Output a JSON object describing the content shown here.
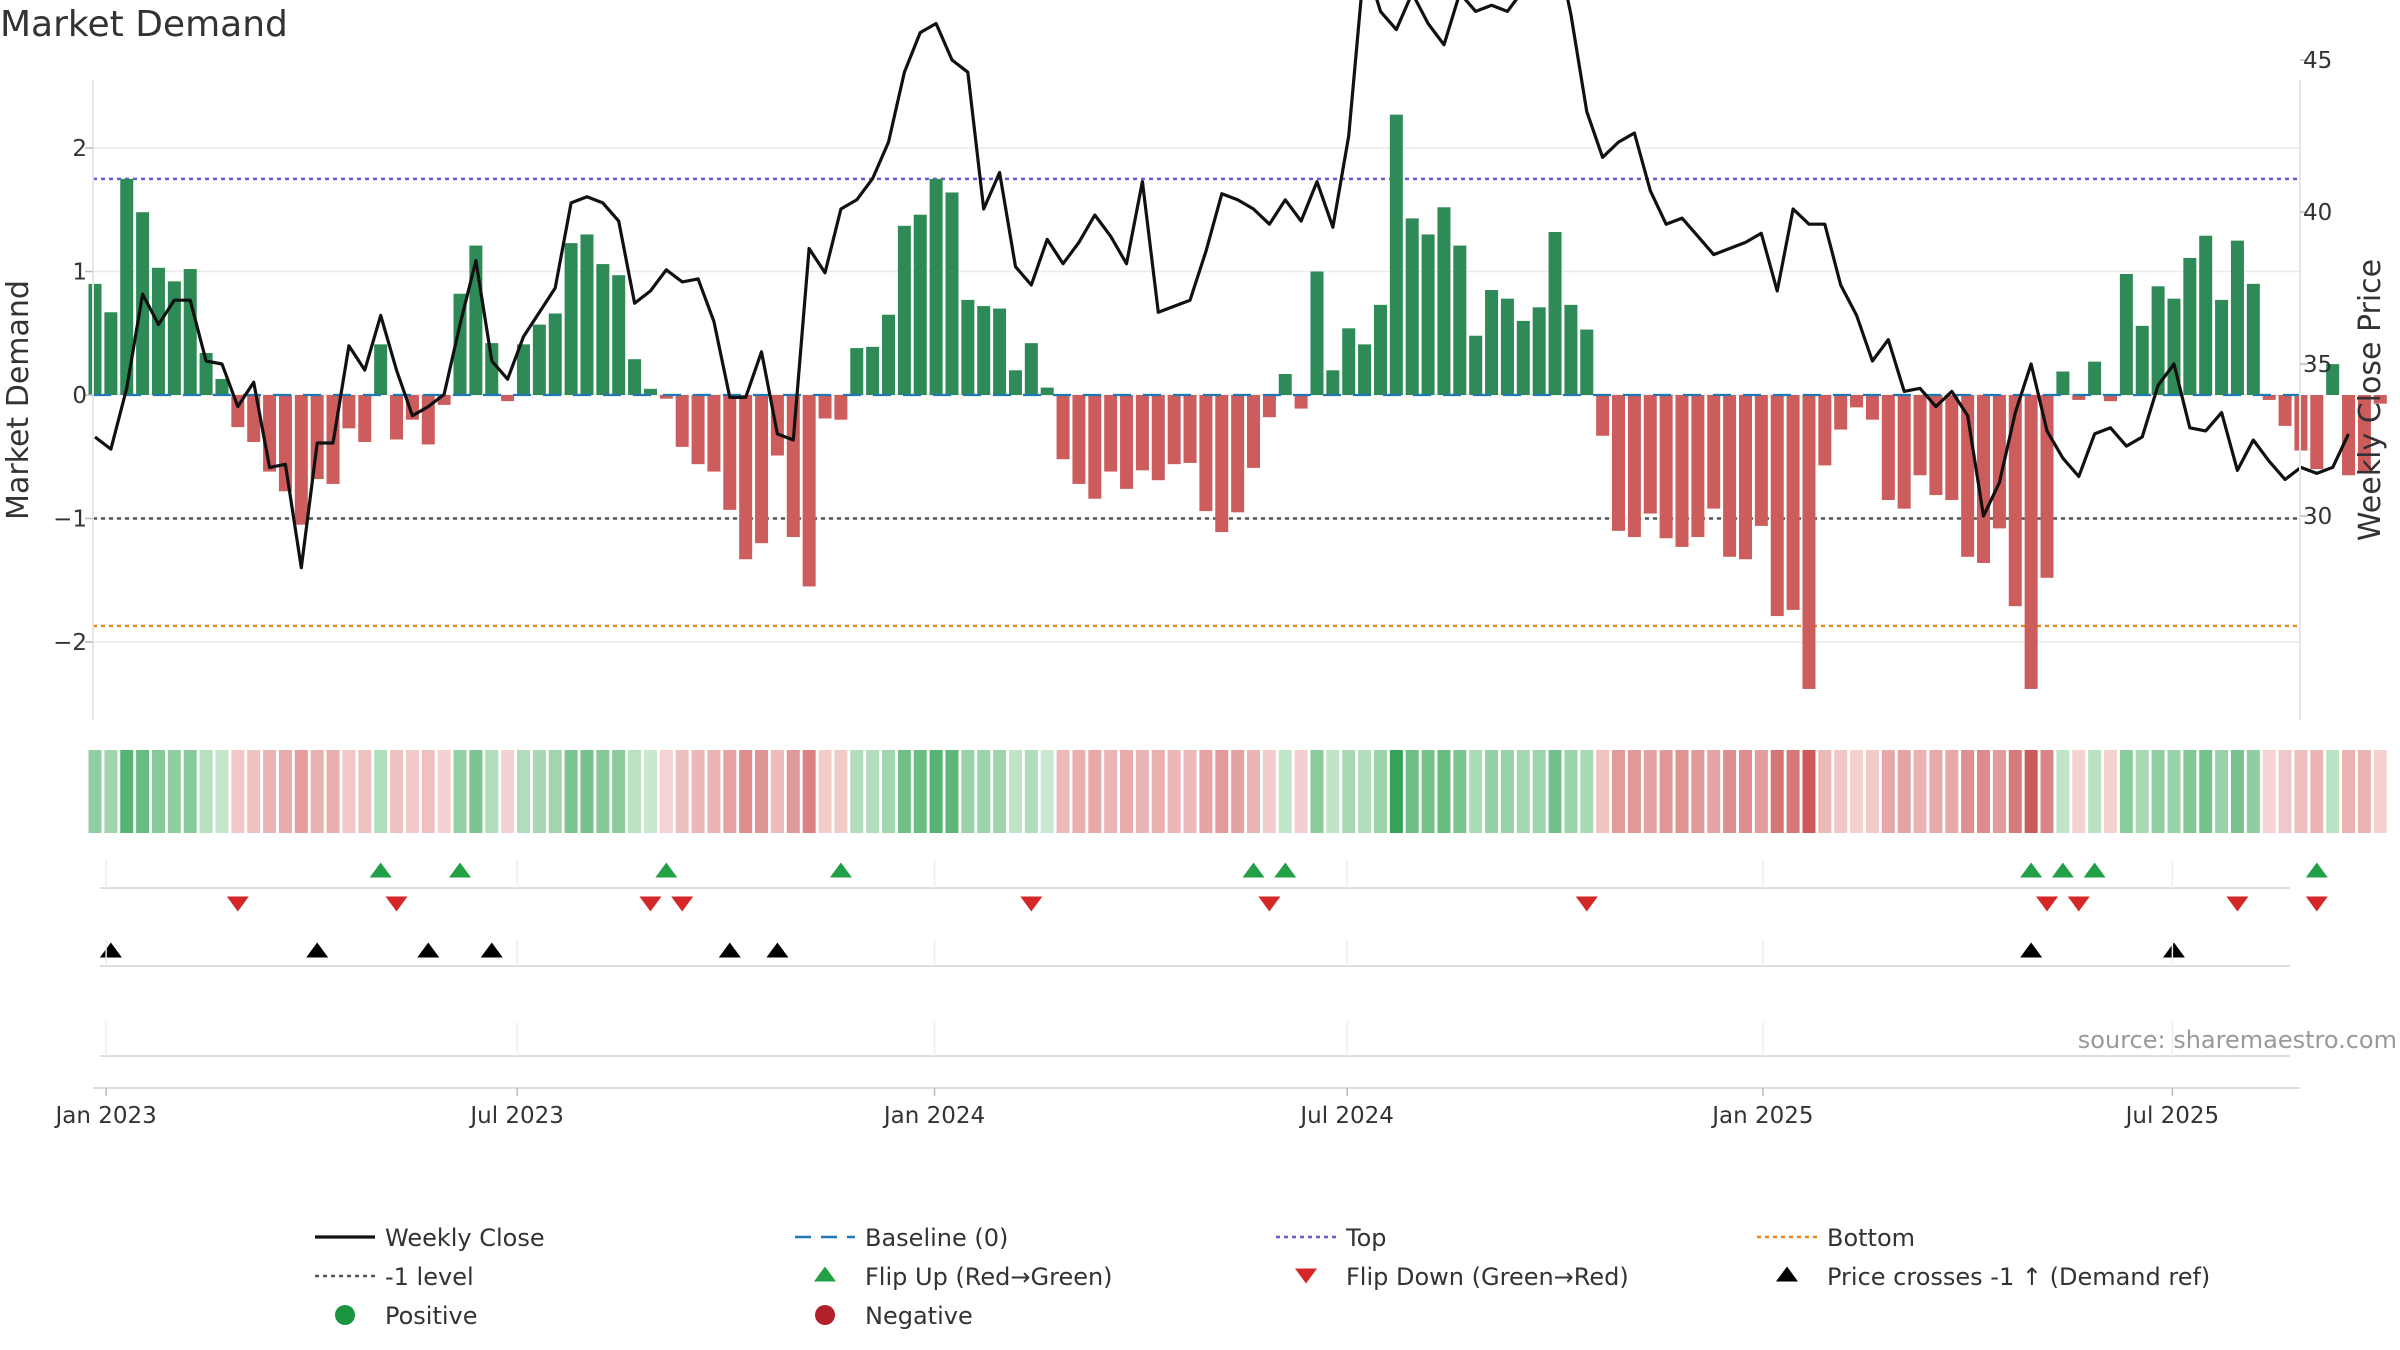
{
  "title": "Market Demand",
  "source": "source: sharemaestro.com",
  "chart_data": {
    "type": "bar+line",
    "title": "Market Demand",
    "ylabel_left": "Market Demand",
    "ylabel_right": "Weekly Close Price",
    "ylim_left": [
      -2.6,
      2.3
    ],
    "ylim_right": [
      28,
      48
    ],
    "left_ticks": [
      2,
      1,
      0,
      -1,
      -2
    ],
    "left_tick_labels": [
      "2",
      "1",
      "0",
      "−1",
      "−2"
    ],
    "right_ticks": [
      45,
      40,
      35,
      30
    ],
    "right_tick_labels": [
      "45",
      "40",
      "35",
      "30"
    ],
    "x_range_weeks": [
      -1.5,
      142.3
    ],
    "x_ticks": [
      {
        "label": "Jan 2023",
        "week": 0.7
      },
      {
        "label": "Jul 2023",
        "week": 26.6
      },
      {
        "label": "Jan 2024",
        "week": 52.9
      },
      {
        "label": "Jul 2024",
        "week": 78.9
      },
      {
        "label": "Jan 2025",
        "week": 105.1
      },
      {
        "label": "Jul 2025",
        "week": 130.9
      }
    ],
    "reference_lines": {
      "top": 1.75,
      "minus_one": -1.0,
      "bottom": -1.87,
      "baseline": 0
    },
    "demand": [
      0.9,
      0.67,
      1.75,
      1.48,
      1.03,
      0.92,
      1.02,
      0.34,
      0.13,
      -0.26,
      -0.38,
      -0.62,
      -0.78,
      -1.05,
      -0.68,
      -0.72,
      -0.27,
      -0.38,
      0.41,
      -0.36,
      -0.2,
      -0.4,
      -0.08,
      0.82,
      1.21,
      0.42,
      -0.05,
      0.41,
      0.57,
      0.66,
      1.23,
      1.3,
      1.06,
      0.97,
      0.29,
      0.05,
      -0.03,
      -0.42,
      -0.56,
      -0.62,
      -0.93,
      -1.33,
      -1.2,
      -0.49,
      -1.15,
      -1.55,
      -0.19,
      -0.2,
      0.38,
      0.39,
      0.65,
      1.37,
      1.46,
      1.75,
      1.64,
      0.77,
      0.72,
      0.7,
      0.2,
      0.42,
      0.06,
      -0.52,
      -0.72,
      -0.84,
      -0.62,
      -0.76,
      -0.61,
      -0.69,
      -0.56,
      -0.55,
      -0.94,
      -1.11,
      -0.95,
      -0.59,
      -0.18,
      0.17,
      -0.11,
      1.0,
      0.2,
      0.54,
      0.41,
      0.73,
      2.27,
      1.43,
      1.3,
      1.52,
      1.21,
      0.48,
      0.85,
      0.78,
      0.6,
      0.71,
      1.32,
      0.73,
      0.53,
      -0.33,
      -1.1,
      -1.15,
      -0.96,
      -1.16,
      -1.23,
      -1.15,
      -0.92,
      -1.31,
      -1.33,
      -1.06,
      -1.79,
      -1.74,
      -2.38,
      -0.57,
      -0.28,
      -0.1,
      -0.2,
      -0.85,
      -0.92,
      -0.65,
      -0.81,
      -0.85,
      -1.31,
      -1.36,
      -1.08,
      -1.71,
      -2.38,
      -1.48,
      0.19,
      -0.04,
      0.27,
      -0.05,
      0.98,
      0.56,
      0.88,
      0.78,
      1.11,
      1.29,
      0.77,
      1.25,
      0.9,
      -0.04,
      -0.25,
      -0.45,
      -0.6,
      0.25,
      -0.65,
      -0.63,
      -0.07
    ],
    "close": [
      32.6,
      32.2,
      34.2,
      37.3,
      36.3,
      37.1,
      37.1,
      35.1,
      35.0,
      33.6,
      34.4,
      31.6,
      31.7,
      28.3,
      32.4,
      32.4,
      35.6,
      34.8,
      36.6,
      34.8,
      33.3,
      33.6,
      34.0,
      36.3,
      38.4,
      35.1,
      34.5,
      35.9,
      36.7,
      37.5,
      40.3,
      40.5,
      40.3,
      39.7,
      37.0,
      37.4,
      38.1,
      37.7,
      37.8,
      36.4,
      33.9,
      33.9,
      35.4,
      32.7,
      32.5,
      38.8,
      38.0,
      40.1,
      40.4,
      41.1,
      42.3,
      44.6,
      45.9,
      46.2,
      45.0,
      44.6,
      40.1,
      41.3,
      38.2,
      37.6,
      39.1,
      38.3,
      39.0,
      39.9,
      39.2,
      38.3,
      41.0,
      36.7,
      36.9,
      37.1,
      38.7,
      40.6,
      40.4,
      40.1,
      39.6,
      40.4,
      39.7,
      41.0,
      39.5,
      42.5,
      48.3,
      46.6,
      46.0,
      47.2,
      46.2,
      45.5,
      47.2,
      46.6,
      46.8,
      46.6,
      47.3,
      49.1,
      49.0,
      46.5,
      43.3,
      41.8,
      42.3,
      42.6,
      40.7,
      39.6,
      39.8,
      39.2,
      38.6,
      38.8,
      39.0,
      39.3,
      37.4,
      40.1,
      39.6,
      39.6,
      37.6,
      36.6,
      35.1,
      35.8,
      34.1,
      34.2,
      33.6,
      34.1,
      33.3,
      30.0,
      31.1,
      33.4,
      35.0,
      32.8,
      31.9,
      31.3,
      32.7,
      32.9,
      32.3,
      32.6,
      34.3,
      35.0,
      32.9,
      32.8,
      33.4,
      31.5,
      32.5,
      31.8,
      31.2,
      31.6,
      31.4,
      31.6,
      32.7
    ],
    "flip_up": [
      18,
      23,
      36,
      47,
      73,
      75,
      122,
      124,
      126,
      140
    ],
    "flip_down": [
      9,
      19,
      35,
      37,
      59,
      74,
      94,
      123,
      125,
      135,
      140
    ],
    "price_cross_up": [
      1,
      14,
      21,
      25,
      40,
      43,
      122,
      131
    ],
    "legend": [
      {
        "label": "Weekly Close",
        "kind": "line-solid",
        "color": "#111111"
      },
      {
        "label": "Baseline (0)",
        "kind": "line-dash",
        "color": "#1f77b4"
      },
      {
        "label": "Top",
        "kind": "line-dot",
        "color": "#6a5acd"
      },
      {
        "label": "Bottom",
        "kind": "line-dot",
        "color": "#e08a1e"
      },
      {
        "label": "-1 level",
        "kind": "line-dot",
        "color": "#555555"
      },
      {
        "label": "Flip Up (Red→Green)",
        "kind": "tri-up",
        "color": "#22a045"
      },
      {
        "label": "Flip Down (Green→Red)",
        "kind": "tri-down",
        "color": "#d62728"
      },
      {
        "label": "Price crosses -1 ↑ (Demand ref)",
        "kind": "tri-up",
        "color": "#000000"
      },
      {
        "label": "Positive",
        "kind": "dot",
        "color": "#1a9641"
      },
      {
        "label": "Negative",
        "kind": "dot",
        "color": "#b2212a"
      }
    ]
  },
  "colors": {
    "positive_bar": "#2e8b57",
    "negative_bar": "#cd5c5c",
    "close_line": "#111111",
    "top_line": "#6a5acd",
    "bottom_line": "#e08a1e",
    "minus_one_line": "#555555",
    "baseline": "#1f77b4"
  }
}
